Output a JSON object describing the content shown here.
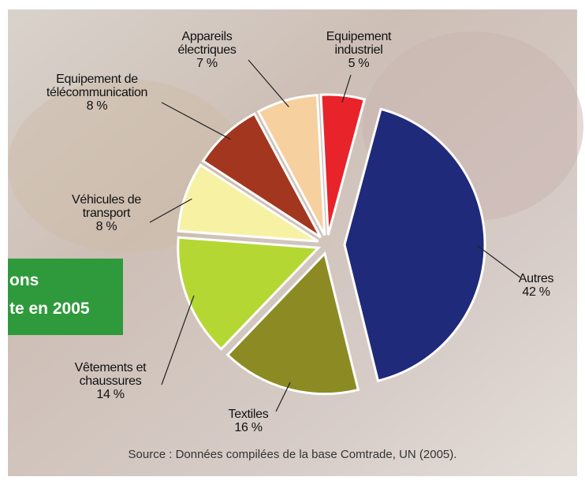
{
  "chart_data": {
    "type": "pie",
    "categories": [
      "Autres",
      "Textiles",
      "Vêtements et chaussures",
      "Véhicules de transport",
      "Equipement de télécommunication",
      "Appareils électriques",
      "Equipement industriel"
    ],
    "values": [
      42,
      16,
      14,
      8,
      8,
      7,
      5
    ],
    "value_labels": [
      "42 %",
      "16 %",
      "14 %",
      "8 %",
      "8 %",
      "7 %",
      "5 %"
    ],
    "colors": [
      "#1f2a7a",
      "#8c8a22",
      "#b5d733",
      "#f7f1a4",
      "#a3361e",
      "#f6d09e",
      "#e8232a"
    ],
    "source": "Source : Données compilées de la base Comtrade, UN (2005)."
  },
  "banner": {
    "lines": [
      "ons",
      "te en 2005"
    ]
  }
}
